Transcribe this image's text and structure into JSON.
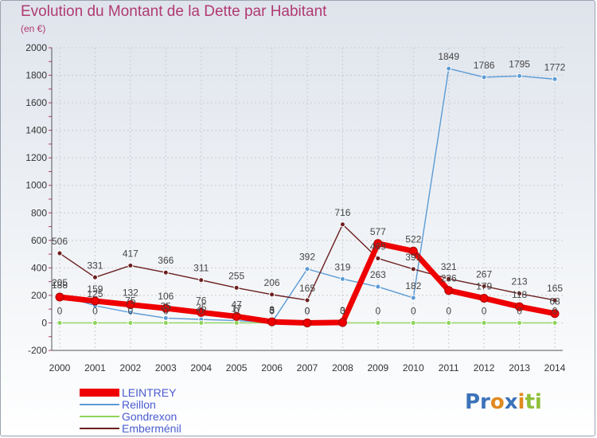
{
  "title": "Evolution du Montant de la Dette par Habitant",
  "subtitle": "(en €)",
  "logo": {
    "text": "Proxiti"
  },
  "chart_data": {
    "type": "line",
    "categories": [
      "2000",
      "2001",
      "2002",
      "2003",
      "2004",
      "2005",
      "2006",
      "2007",
      "2008",
      "2009",
      "2010",
      "2011",
      "2012",
      "2013",
      "2014"
    ],
    "ylim": [
      -200,
      2000
    ],
    "yticks": [
      -200,
      0,
      200,
      400,
      600,
      800,
      1000,
      1200,
      1400,
      1600,
      1800,
      2000
    ],
    "grid": true,
    "legend_position": "bottom-left",
    "series": [
      {
        "name": "LEINTREY",
        "color": "#ee0000",
        "values": [
          188,
          159,
          132,
          106,
          76,
          47,
          8,
          0,
          3,
          577,
          522,
          236,
          179,
          118,
          68
        ]
      },
      {
        "name": "Reillon",
        "color": "#5b9bd5",
        "values": [
          205,
          125,
          75,
          35,
          25,
          17,
          3,
          392,
          319,
          263,
          182,
          1849,
          1786,
          1795,
          1772
        ]
      },
      {
        "name": "Gondrexon",
        "color": "#8ed45a",
        "values": [
          0,
          0,
          0,
          0,
          0,
          0,
          0,
          0,
          0,
          0,
          0,
          0,
          0,
          0,
          0
        ]
      },
      {
        "name": "Emberménil",
        "color": "#6b1f1f",
        "values": [
          506,
          331,
          417,
          366,
          311,
          255,
          206,
          165,
          716,
          469,
          391,
          321,
          267,
          213,
          165
        ]
      }
    ]
  }
}
